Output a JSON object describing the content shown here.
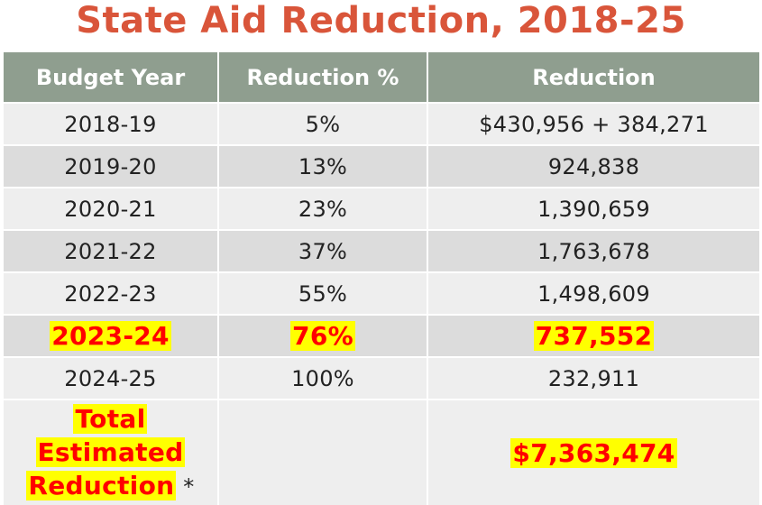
{
  "title": "State Aid Reduction, 2018-25",
  "table": {
    "headers": [
      "Budget Year",
      "Reduction %",
      "Reduction"
    ],
    "rows": [
      {
        "year": "2018-19",
        "pct": "5%",
        "amount": "$430,956 + 384,271"
      },
      {
        "year": "2019-20",
        "pct": "13%",
        "amount": "924,838"
      },
      {
        "year": "2020-21",
        "pct": "23%",
        "amount": "1,390,659"
      },
      {
        "year": "2021-22",
        "pct": "37%",
        "amount": "1,763,678"
      },
      {
        "year": "2022-23",
        "pct": "55%",
        "amount": "1,498,609"
      },
      {
        "year": "2023-24",
        "pct": "76%",
        "amount": "737,552"
      },
      {
        "year": "2024-25",
        "pct": "100%",
        "amount": "232,911"
      }
    ],
    "total": {
      "label_line1": "Total",
      "label_line2": "Estimated",
      "label_line3": "Reduction",
      "asterisk": "*",
      "amount": "$7,363,474"
    }
  },
  "colors": {
    "title": "#d9553a",
    "header_bg": "#8f9e8f",
    "row_light": "#eeeeee",
    "row_dark": "#dcdcdc",
    "highlight_bg": "#ffff00",
    "highlight_text": "#ff0000"
  }
}
